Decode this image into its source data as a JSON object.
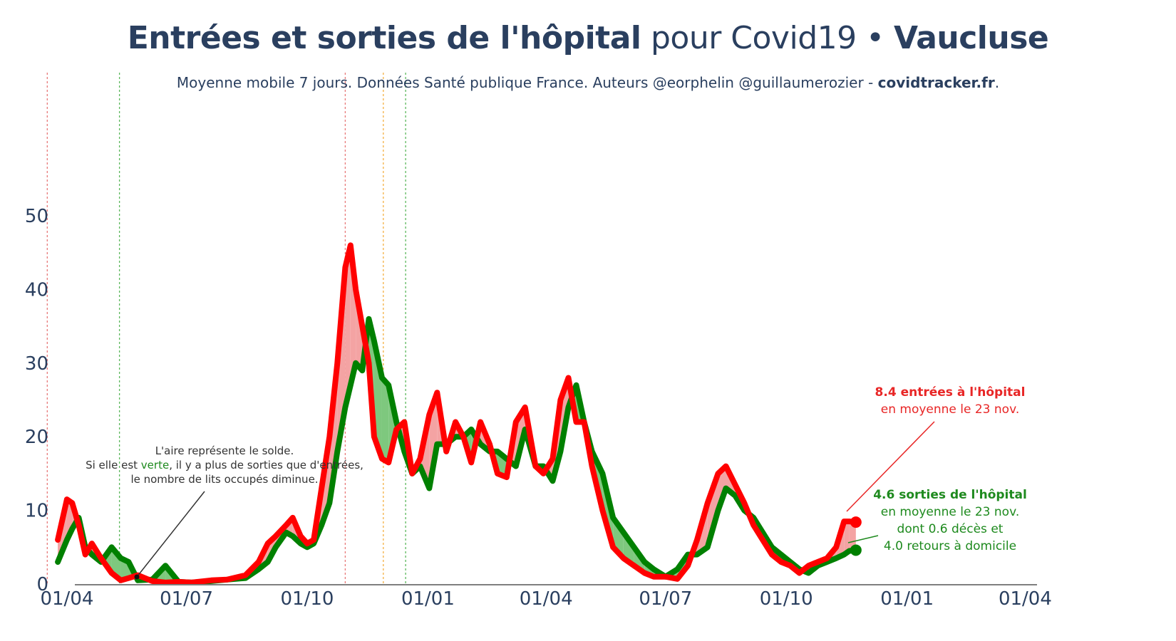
{
  "header": {
    "title_bold_1": "Entrées et sorties de l'hôpital",
    "title_normal": " pour Covid19 • ",
    "title_bold_2": "Vaucluse",
    "subtitle_normal": "Moyenne mobile 7 jours. Données Santé publique France. Auteurs @eorphelin @guillaumerozier - ",
    "subtitle_bold": "covidtracker.fr",
    "subtitle_end": "."
  },
  "annotations": {
    "solde_line1": "L'aire représente le solde.",
    "solde_line2_a": "Si elle est ",
    "solde_line2_verte": "verte",
    "solde_line2_b": ", il y a plus de sorties que d'entrées,",
    "solde_line3": "le nombre de lits occupés diminue.",
    "entrees_bold": "8.4 entrées à l'hôpital",
    "entrees_sub": "en moyenne le 23 nov.",
    "sorties_bold": "4.6 sorties de l'hôpital",
    "sorties_sub1": "en moyenne le 23 nov.",
    "sorties_sub2": "dont 0.6 décès et",
    "sorties_sub3": "4.0 retours à domicile"
  },
  "colors": {
    "entrees": "#ff0000",
    "sorties": "#008000",
    "fill_red": "#f4a3a3",
    "fill_green": "#7ec87e",
    "axis_text": "#2a3f5f",
    "vline_red": "#e87a7a",
    "vline_green": "#5cb85c",
    "vline_orange": "#f5b041"
  },
  "chart_data": {
    "type": "line",
    "x_start": "2020-03-25",
    "x_end": "2021-11-23",
    "xlim": [
      "2020-03-19",
      "2022-04-10"
    ],
    "ylim": [
      0,
      59
    ],
    "x_ticks": [
      "01/04",
      "01/07",
      "01/10",
      "01/01",
      "01/04",
      "01/07",
      "01/10",
      "01/01",
      "01/04"
    ],
    "x_tick_dates": [
      "2020-04-01",
      "2020-07-01",
      "2020-10-01",
      "2021-01-01",
      "2021-04-01",
      "2021-07-01",
      "2021-10-01",
      "2022-01-01",
      "2022-04-01"
    ],
    "y_ticks": [
      0,
      10,
      20,
      30,
      40,
      50
    ],
    "vertical_lines": [
      {
        "date": "2020-03-17",
        "color": "red"
      },
      {
        "date": "2020-05-11",
        "color": "green"
      },
      {
        "date": "2020-10-30",
        "color": "red"
      },
      {
        "date": "2020-11-28",
        "color": "orange"
      },
      {
        "date": "2020-12-15",
        "color": "green"
      }
    ],
    "series": [
      {
        "name": "entrées",
        "dates": [
          "2020-03-25",
          "2020-04-01",
          "2020-04-05",
          "2020-04-10",
          "2020-04-15",
          "2020-04-20",
          "2020-04-27",
          "2020-05-05",
          "2020-05-12",
          "2020-05-18",
          "2020-05-25",
          "2020-06-05",
          "2020-06-15",
          "2020-06-25",
          "2020-07-05",
          "2020-07-20",
          "2020-08-01",
          "2020-08-15",
          "2020-08-25",
          "2020-09-01",
          "2020-09-07",
          "2020-09-15",
          "2020-09-20",
          "2020-09-26",
          "2020-10-01",
          "2020-10-06",
          "2020-10-12",
          "2020-10-18",
          "2020-10-24",
          "2020-10-30",
          "2020-11-03",
          "2020-11-07",
          "2020-11-12",
          "2020-11-17",
          "2020-11-21",
          "2020-11-27",
          "2020-12-02",
          "2020-12-08",
          "2020-12-14",
          "2020-12-20",
          "2020-12-26",
          "2021-01-02",
          "2021-01-08",
          "2021-01-15",
          "2021-01-22",
          "2021-01-28",
          "2021-02-03",
          "2021-02-10",
          "2021-02-17",
          "2021-02-23",
          "2021-03-02",
          "2021-03-09",
          "2021-03-16",
          "2021-03-24",
          "2021-03-30",
          "2021-04-06",
          "2021-04-12",
          "2021-04-18",
          "2021-04-24",
          "2021-04-30",
          "2021-05-06",
          "2021-05-14",
          "2021-05-22",
          "2021-05-30",
          "2021-06-07",
          "2021-06-15",
          "2021-06-22",
          "2021-07-01",
          "2021-07-10",
          "2021-07-18",
          "2021-07-25",
          "2021-08-02",
          "2021-08-10",
          "2021-08-16",
          "2021-08-23",
          "2021-08-30",
          "2021-09-06",
          "2021-09-13",
          "2021-09-20",
          "2021-09-27",
          "2021-10-04",
          "2021-10-11",
          "2021-10-18",
          "2021-10-25",
          "2021-11-01",
          "2021-11-08",
          "2021-11-14",
          "2021-11-18",
          "2021-11-23"
        ],
        "values": [
          6,
          11.5,
          11,
          8,
          4,
          5.5,
          3.5,
          1.5,
          0.5,
          0.8,
          1.2,
          0.4,
          0.2,
          0.3,
          0.2,
          0.5,
          0.6,
          1.2,
          3,
          5.5,
          6.5,
          8,
          9,
          6.5,
          5.5,
          6,
          13,
          20,
          30,
          43,
          46,
          40,
          35,
          30,
          20,
          17,
          16.5,
          21,
          22,
          15,
          17,
          23,
          26,
          18,
          22,
          20,
          16.5,
          22,
          19,
          15,
          14.5,
          22,
          24,
          16,
          15,
          17,
          25,
          28,
          22,
          22,
          16,
          10,
          5,
          3.5,
          2.5,
          1.5,
          1,
          1,
          0.7,
          2.5,
          6,
          11,
          15,
          16,
          13.5,
          11,
          8,
          6,
          4,
          3,
          2.5,
          1.5,
          2.5,
          3,
          3.5,
          5,
          8.5,
          8.5,
          8.4
        ]
      },
      {
        "name": "sorties",
        "dates": [
          "2020-03-25",
          "2020-04-01",
          "2020-04-05",
          "2020-04-10",
          "2020-04-15",
          "2020-04-20",
          "2020-04-27",
          "2020-05-05",
          "2020-05-12",
          "2020-05-18",
          "2020-05-25",
          "2020-06-05",
          "2020-06-15",
          "2020-06-25",
          "2020-07-05",
          "2020-07-20",
          "2020-08-01",
          "2020-08-15",
          "2020-08-25",
          "2020-09-01",
          "2020-09-07",
          "2020-09-15",
          "2020-09-20",
          "2020-09-26",
          "2020-10-01",
          "2020-10-06",
          "2020-10-12",
          "2020-10-18",
          "2020-10-24",
          "2020-10-30",
          "2020-11-03",
          "2020-11-07",
          "2020-11-12",
          "2020-11-17",
          "2020-11-21",
          "2020-11-27",
          "2020-12-02",
          "2020-12-08",
          "2020-12-14",
          "2020-12-20",
          "2020-12-26",
          "2021-01-02",
          "2021-01-08",
          "2021-01-15",
          "2021-01-22",
          "2021-01-28",
          "2021-02-03",
          "2021-02-10",
          "2021-02-17",
          "2021-02-23",
          "2021-03-02",
          "2021-03-09",
          "2021-03-16",
          "2021-03-24",
          "2021-03-30",
          "2021-04-06",
          "2021-04-12",
          "2021-04-18",
          "2021-04-24",
          "2021-04-30",
          "2021-05-06",
          "2021-05-14",
          "2021-05-22",
          "2021-05-30",
          "2021-06-07",
          "2021-06-15",
          "2021-06-22",
          "2021-07-01",
          "2021-07-10",
          "2021-07-18",
          "2021-07-25",
          "2021-08-02",
          "2021-08-10",
          "2021-08-16",
          "2021-08-23",
          "2021-08-30",
          "2021-09-06",
          "2021-09-13",
          "2021-09-20",
          "2021-09-27",
          "2021-10-04",
          "2021-10-11",
          "2021-10-18",
          "2021-10-25",
          "2021-11-01",
          "2021-11-08",
          "2021-11-14",
          "2021-11-18",
          "2021-11-23"
        ],
        "values": [
          3,
          6,
          7.5,
          9,
          5,
          4,
          3,
          5,
          3.5,
          3,
          0.5,
          0.6,
          2.5,
          0.3,
          0.2,
          0.4,
          0.6,
          0.8,
          2,
          3,
          5,
          7,
          6.5,
          5.5,
          5,
          5.5,
          8,
          11,
          18,
          24,
          27,
          30,
          29,
          36,
          33,
          28,
          27,
          22,
          18,
          15,
          16,
          13,
          19,
          19,
          20,
          20,
          21,
          19,
          18,
          18,
          17,
          16,
          21,
          16,
          16,
          14,
          18,
          24,
          27,
          22,
          18,
          15,
          9,
          7,
          5,
          3,
          2,
          1,
          2,
          4,
          4,
          5,
          10,
          13,
          12,
          10,
          9,
          7,
          5,
          4,
          3,
          2,
          1.5,
          2.5,
          3,
          3.5,
          4,
          4.5,
          4.6
        ]
      }
    ]
  }
}
